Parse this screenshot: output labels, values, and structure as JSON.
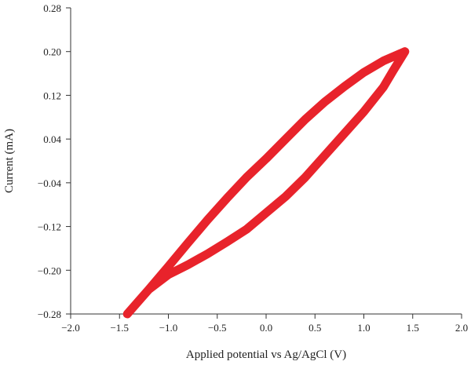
{
  "chart_data": {
    "type": "line",
    "title": "",
    "xlabel": "Applied potential vs Ag/AgCl (V)",
    "ylabel": "Current (mA)",
    "xlim": [
      -2.0,
      2.0
    ],
    "ylim": [
      -0.28,
      0.28
    ],
    "x_ticks": [
      -2.0,
      -1.5,
      -1.0,
      -0.5,
      0.0,
      0.5,
      1.0,
      1.5,
      2.0
    ],
    "x_tick_labels": [
      "−2.0",
      "−1.5",
      "−1.0",
      "−0.5",
      "0.0",
      "0.5",
      "1.0",
      "1.5",
      "2.0"
    ],
    "y_ticks": [
      0.28,
      0.2,
      0.12,
      0.04,
      -0.04,
      -0.12,
      -0.2,
      -0.28
    ],
    "y_tick_labels": [
      "0.28",
      "0.20",
      "0.12",
      "0.04",
      "−0.04",
      "−0.12",
      "−0.20",
      "−0.28"
    ],
    "grid": false,
    "legend": "none",
    "series": [
      {
        "color": "#e8232b",
        "points": [
          [
            -1.42,
            -0.28
          ],
          [
            -1.2,
            -0.235
          ],
          [
            -1.0,
            -0.193
          ],
          [
            -0.8,
            -0.15
          ],
          [
            -0.6,
            -0.108
          ],
          [
            -0.4,
            -0.068
          ],
          [
            -0.2,
            -0.03
          ],
          [
            0.0,
            0.004
          ],
          [
            0.2,
            0.04
          ],
          [
            0.4,
            0.076
          ],
          [
            0.6,
            0.108
          ],
          [
            0.8,
            0.136
          ],
          [
            1.0,
            0.162
          ],
          [
            1.2,
            0.183
          ],
          [
            1.42,
            0.2
          ],
          [
            1.3,
            0.165
          ],
          [
            1.2,
            0.135
          ],
          [
            1.0,
            0.09
          ],
          [
            0.8,
            0.05
          ],
          [
            0.6,
            0.01
          ],
          [
            0.4,
            -0.03
          ],
          [
            0.2,
            -0.065
          ],
          [
            0.0,
            -0.095
          ],
          [
            -0.2,
            -0.125
          ],
          [
            -0.4,
            -0.148
          ],
          [
            -0.6,
            -0.17
          ],
          [
            -0.8,
            -0.19
          ],
          [
            -1.0,
            -0.208
          ],
          [
            -1.2,
            -0.235
          ],
          [
            -1.42,
            -0.28
          ]
        ]
      }
    ]
  }
}
